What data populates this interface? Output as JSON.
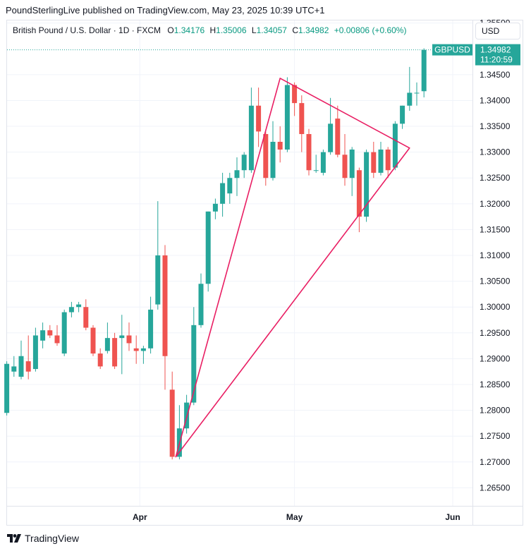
{
  "header": {
    "attribution": "PoundSterlingLive published on TradingView.com, May 23, 2025 10:39 UTC+1"
  },
  "legend": {
    "title": "British Pound / U.S. Dollar · 1D · FXCM",
    "open_label": "O",
    "open": "1.34176",
    "high_label": "H",
    "high": "1.35006",
    "low_label": "L",
    "low": "1.34057",
    "close_label": "C",
    "close": "1.34982",
    "change": "+0.00806 (+0.60%)"
  },
  "currency_button": {
    "label": "USD"
  },
  "price_badge": {
    "symbol": "GBPUSD",
    "price": "1.34982",
    "countdown": "11:20:59"
  },
  "footer": {
    "brand": "TradingView"
  },
  "colors": {
    "up": "#26a69a",
    "down": "#ef5350",
    "pattern": "#e91e63",
    "badge": "#26a69a"
  },
  "chart_data": {
    "type": "candlestick",
    "symbol": "GBPUSD",
    "ylim": [
      1.2615,
      1.3555
    ],
    "y_ticks": [
      "1.26500",
      "1.27000",
      "1.27500",
      "1.28000",
      "1.28500",
      "1.29000",
      "1.29500",
      "1.30000",
      "1.30500",
      "1.31000",
      "1.31500",
      "1.32000",
      "1.32500",
      "1.33000",
      "1.33500",
      "1.34000",
      "1.34500",
      "1.35500"
    ],
    "x_ticks": [
      {
        "label": "Apr",
        "index": 18.5
      },
      {
        "label": "May",
        "index": 40
      },
      {
        "label": "Jun",
        "index": 62
      }
    ],
    "last_price": 1.34982,
    "candles": [
      {
        "o": 1.2795,
        "h": 1.2895,
        "l": 1.279,
        "c": 1.289
      },
      {
        "o": 1.2875,
        "h": 1.2905,
        "l": 1.2865,
        "c": 1.2885
      },
      {
        "o": 1.2865,
        "h": 1.2935,
        "l": 1.286,
        "c": 1.2905
      },
      {
        "o": 1.2895,
        "h": 1.2945,
        "l": 1.286,
        "c": 1.2875
      },
      {
        "o": 1.288,
        "h": 1.296,
        "l": 1.2875,
        "c": 1.2945
      },
      {
        "o": 1.2935,
        "h": 1.297,
        "l": 1.292,
        "c": 1.2955
      },
      {
        "o": 1.2955,
        "h": 1.2965,
        "l": 1.294,
        "c": 1.2945
      },
      {
        "o": 1.2945,
        "h": 1.2965,
        "l": 1.2925,
        "c": 1.293
      },
      {
        "o": 1.291,
        "h": 1.2995,
        "l": 1.2905,
        "c": 1.299
      },
      {
        "o": 1.299,
        "h": 1.301,
        "l": 1.298,
        "c": 1.3
      },
      {
        "o": 1.3,
        "h": 1.301,
        "l": 1.299,
        "c": 1.3005
      },
      {
        "o": 1.3,
        "h": 1.3015,
        "l": 1.2955,
        "c": 1.296
      },
      {
        "o": 1.296,
        "h": 1.2965,
        "l": 1.2905,
        "c": 1.291
      },
      {
        "o": 1.291,
        "h": 1.292,
        "l": 1.288,
        "c": 1.2885
      },
      {
        "o": 1.2915,
        "h": 1.297,
        "l": 1.291,
        "c": 1.294
      },
      {
        "o": 1.294,
        "h": 1.295,
        "l": 1.288,
        "c": 1.2885
      },
      {
        "o": 1.294,
        "h": 1.2985,
        "l": 1.287,
        "c": 1.2945
      },
      {
        "o": 1.2945,
        "h": 1.297,
        "l": 1.2915,
        "c": 1.293
      },
      {
        "o": 1.292,
        "h": 1.2945,
        "l": 1.289,
        "c": 1.2915
      },
      {
        "o": 1.2915,
        "h": 1.2925,
        "l": 1.289,
        "c": 1.292
      },
      {
        "o": 1.292,
        "h": 1.302,
        "l": 1.291,
        "c": 1.2995
      },
      {
        "o": 1.3005,
        "h": 1.3205,
        "l": 1.2995,
        "c": 1.31
      },
      {
        "o": 1.31,
        "h": 1.312,
        "l": 1.284,
        "c": 1.2905
      },
      {
        "o": 1.284,
        "h": 1.2875,
        "l": 1.2705,
        "c": 1.271
      },
      {
        "o": 1.271,
        "h": 1.281,
        "l": 1.2705,
        "c": 1.2765
      },
      {
        "o": 1.2765,
        "h": 1.283,
        "l": 1.2755,
        "c": 1.2815
      },
      {
        "o": 1.2815,
        "h": 1.3,
        "l": 1.281,
        "c": 1.2965
      },
      {
        "o": 1.2965,
        "h": 1.3065,
        "l": 1.296,
        "c": 1.3045
      },
      {
        "o": 1.3045,
        "h": 1.3185,
        "l": 1.303,
        "c": 1.3185
      },
      {
        "o": 1.3185,
        "h": 1.321,
        "l": 1.317,
        "c": 1.32
      },
      {
        "o": 1.32,
        "h": 1.326,
        "l": 1.3175,
        "c": 1.324
      },
      {
        "o": 1.322,
        "h": 1.326,
        "l": 1.32,
        "c": 1.325
      },
      {
        "o": 1.325,
        "h": 1.329,
        "l": 1.3215,
        "c": 1.3265
      },
      {
        "o": 1.3265,
        "h": 1.33,
        "l": 1.325,
        "c": 1.3295
      },
      {
        "o": 1.3265,
        "h": 1.3425,
        "l": 1.326,
        "c": 1.339
      },
      {
        "o": 1.339,
        "h": 1.3425,
        "l": 1.331,
        "c": 1.334
      },
      {
        "o": 1.3335,
        "h": 1.334,
        "l": 1.3235,
        "c": 1.325
      },
      {
        "o": 1.325,
        "h": 1.336,
        "l": 1.3245,
        "c": 1.332
      },
      {
        "o": 1.332,
        "h": 1.335,
        "l": 1.328,
        "c": 1.3305
      },
      {
        "o": 1.3305,
        "h": 1.3445,
        "l": 1.33,
        "c": 1.343
      },
      {
        "o": 1.343,
        "h": 1.3435,
        "l": 1.337,
        "c": 1.3395
      },
      {
        "o": 1.3395,
        "h": 1.341,
        "l": 1.33,
        "c": 1.3335
      },
      {
        "o": 1.3335,
        "h": 1.3345,
        "l": 1.3255,
        "c": 1.3265
      },
      {
        "o": 1.3265,
        "h": 1.3295,
        "l": 1.326,
        "c": 1.3265
      },
      {
        "o": 1.326,
        "h": 1.3305,
        "l": 1.3255,
        "c": 1.33
      },
      {
        "o": 1.33,
        "h": 1.3405,
        "l": 1.3295,
        "c": 1.3355
      },
      {
        "o": 1.3365,
        "h": 1.339,
        "l": 1.329,
        "c": 1.3295
      },
      {
        "o": 1.3295,
        "h": 1.3335,
        "l": 1.3235,
        "c": 1.325
      },
      {
        "o": 1.325,
        "h": 1.331,
        "l": 1.3215,
        "c": 1.3305
      },
      {
        "o": 1.3265,
        "h": 1.327,
        "l": 1.3145,
        "c": 1.3175
      },
      {
        "o": 1.3175,
        "h": 1.3305,
        "l": 1.3165,
        "c": 1.33
      },
      {
        "o": 1.33,
        "h": 1.332,
        "l": 1.325,
        "c": 1.326
      },
      {
        "o": 1.326,
        "h": 1.332,
        "l": 1.3255,
        "c": 1.3305
      },
      {
        "o": 1.3305,
        "h": 1.331,
        "l": 1.325,
        "c": 1.3265
      },
      {
        "o": 1.327,
        "h": 1.336,
        "l": 1.3265,
        "c": 1.3355
      },
      {
        "o": 1.3355,
        "h": 1.339,
        "l": 1.3345,
        "c": 1.339
      },
      {
        "o": 1.339,
        "h": 1.3465,
        "l": 1.338,
        "c": 1.3415
      },
      {
        "o": 1.3415,
        "h": 1.3435,
        "l": 1.339,
        "c": 1.3415
      },
      {
        "o": 1.3418,
        "h": 1.3501,
        "l": 1.3406,
        "c": 1.3498
      }
    ],
    "annotations": [
      {
        "type": "triangle",
        "points": [
          [
            23.5,
            1.271
          ],
          [
            38.0,
            1.3443
          ],
          [
            56.0,
            1.3308
          ]
        ]
      }
    ]
  }
}
